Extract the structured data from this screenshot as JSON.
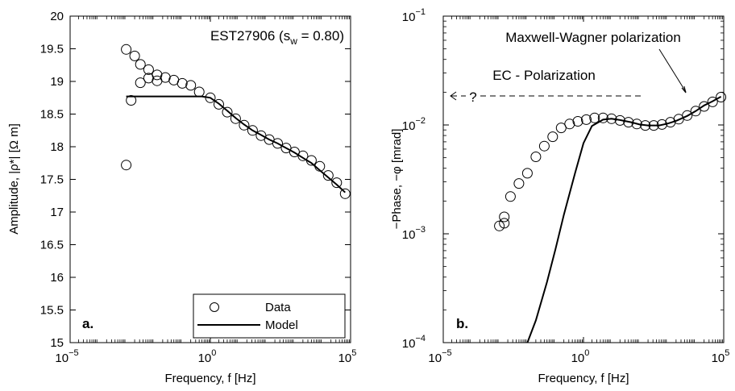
{
  "chart_data": [
    {
      "type": "scatter",
      "panel_label": "a.",
      "annotation": {
        "main": "EST27906 (s",
        "sub": "w",
        "tail": " = 0.80)"
      },
      "xlabel": "Frequency, f [Hz]",
      "ylabel": "Amplitude, |ρ*| [Ω m]",
      "xscale": "log",
      "xlim": [
        1e-05,
        100000
      ],
      "ylim": [
        15,
        20
      ],
      "x_ticks": [
        {
          "base": "10",
          "exp": "−5",
          "value": 1e-05
        },
        {
          "base": "10",
          "exp": "0",
          "value": 1
        },
        {
          "base": "10",
          "exp": "5",
          "value": 100000
        }
      ],
      "y_ticks": [
        "15",
        "15.5",
        "16",
        "16.5",
        "17",
        "17.5",
        "18",
        "18.5",
        "19",
        "19.5",
        "20"
      ],
      "legend": {
        "position": "bottom-right",
        "entries": [
          "Data",
          "Model"
        ]
      },
      "series": [
        {
          "name": "Data",
          "style": "markers",
          "x": [
            0.001,
            0.001,
            0.0015,
            0.002,
            0.0032,
            0.0032,
            0.0063,
            0.0063,
            0.0126,
            0.0126,
            0.025,
            0.05,
            0.1,
            0.2,
            0.4,
            1,
            2,
            4,
            8,
            16,
            32,
            64,
            126,
            251,
            501,
            1000,
            2000,
            4000,
            8000,
            16000,
            32000,
            64000
          ],
          "y": [
            17.72,
            19.49,
            18.71,
            19.39,
            18.98,
            19.26,
            19.05,
            19.18,
            19.1,
            19.01,
            19.06,
            19.02,
            18.97,
            18.94,
            18.84,
            18.75,
            18.65,
            18.53,
            18.43,
            18.33,
            18.25,
            18.17,
            18.11,
            18.05,
            17.98,
            17.92,
            17.86,
            17.79,
            17.7,
            17.56,
            17.45,
            17.28
          ]
        },
        {
          "name": "Model",
          "style": "line",
          "x": [
            0.001,
            0.01,
            0.1,
            0.5,
            1,
            2,
            4,
            8,
            16,
            32,
            64,
            126,
            251,
            501,
            1000,
            2000,
            4000,
            8000,
            16000,
            32000,
            64000
          ],
          "y": [
            18.77,
            18.77,
            18.77,
            18.77,
            18.75,
            18.66,
            18.55,
            18.44,
            18.34,
            18.25,
            18.18,
            18.11,
            18.05,
            17.98,
            17.91,
            17.83,
            17.75,
            17.64,
            17.53,
            17.42,
            17.3
          ]
        }
      ]
    },
    {
      "type": "scatter",
      "panel_label": "b.",
      "annotations": [
        "Maxwell-Wagner polarization",
        "EC - Polarization",
        "?"
      ],
      "xlabel": "Frequency, f [Hz]",
      "ylabel": "−Phase, −φ [mrad]",
      "xscale": "log",
      "yscale": "log",
      "xlim": [
        1e-05,
        100000
      ],
      "ylim": [
        0.0001,
        0.1
      ],
      "x_ticks": [
        {
          "base": "10",
          "exp": "−5",
          "value": 1e-05
        },
        {
          "base": "10",
          "exp": "0",
          "value": 1
        },
        {
          "base": "10",
          "exp": "5",
          "value": 100000
        }
      ],
      "y_ticks": [
        {
          "base": "10",
          "exp": "−4",
          "value": 0.0001
        },
        {
          "base": "10",
          "exp": "−3",
          "value": 0.001
        },
        {
          "base": "10",
          "exp": "−2",
          "value": 0.01
        },
        {
          "base": "10",
          "exp": "−1",
          "value": 0.1
        }
      ],
      "series": [
        {
          "name": "Data",
          "style": "markers",
          "x": [
            0.001,
            0.0015,
            0.0015,
            0.0025,
            0.005,
            0.01,
            0.02,
            0.04,
            0.08,
            0.16,
            0.32,
            0.63,
            1.26,
            2.5,
            5,
            10,
            20,
            40,
            80,
            160,
            320,
            630,
            1260,
            2500,
            5000,
            10000,
            20000,
            40000,
            80000
          ],
          "y": [
            0.00118,
            0.00125,
            0.00143,
            0.0022,
            0.0029,
            0.0036,
            0.0051,
            0.0064,
            0.0078,
            0.0094,
            0.0102,
            0.0108,
            0.0112,
            0.0116,
            0.0116,
            0.0114,
            0.011,
            0.0106,
            0.0102,
            0.0099,
            0.0099,
            0.0101,
            0.0106,
            0.0113,
            0.0122,
            0.0134,
            0.0148,
            0.0163,
            0.018
          ]
        },
        {
          "name": "Model",
          "style": "line",
          "x": [
            0.01,
            0.02,
            0.05,
            0.1,
            0.2,
            0.5,
            1,
            2,
            5,
            10,
            20,
            50,
            100,
            200,
            500,
            1000,
            2000,
            5000,
            10000,
            20000,
            40000,
            80000
          ],
          "y": [
            0.0001,
            0.00016,
            0.00036,
            0.00072,
            0.0015,
            0.0036,
            0.0068,
            0.0098,
            0.0112,
            0.0114,
            0.0111,
            0.0106,
            0.0101,
            0.0099,
            0.0099,
            0.0103,
            0.0109,
            0.0121,
            0.0134,
            0.0151,
            0.0165,
            0.0182
          ]
        }
      ]
    }
  ]
}
